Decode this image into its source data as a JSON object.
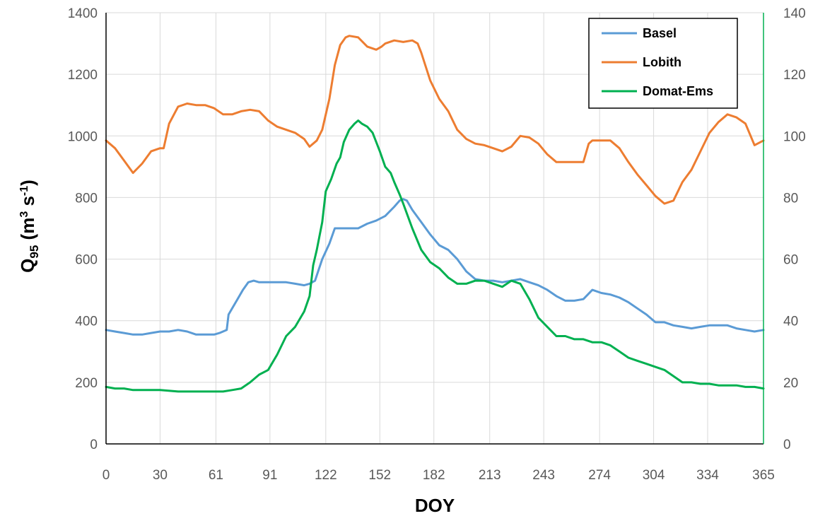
{
  "chart_data": {
    "type": "line",
    "xlabel": "DOY",
    "ylabel": {
      "main": "Q",
      "sub": "95",
      "unit_open": " (m",
      "unit_exp1": "3",
      "unit_mid": " s",
      "unit_exp2": "-1",
      "unit_close": ")"
    },
    "x_ticks": [
      0,
      30,
      61,
      91,
      122,
      152,
      182,
      213,
      243,
      274,
      304,
      334,
      365
    ],
    "xlim": [
      0,
      365
    ],
    "ylim_left": [
      0,
      1400
    ],
    "y_ticks_left": [
      0,
      200,
      400,
      600,
      800,
      1000,
      1200,
      1400
    ],
    "ylim_right": [
      0,
      140
    ],
    "y_ticks_right": [
      0,
      20,
      40,
      60,
      80,
      100,
      120,
      140
    ],
    "grid": true,
    "legend_position": "top-right",
    "colors": {
      "right_axis": "#00b050",
      "grid": "#d9d9d9",
      "axis": "#000000"
    },
    "series": [
      {
        "name": "Basel",
        "color": "#5b9bd5",
        "axis": "left",
        "x": [
          0,
          5,
          10,
          15,
          20,
          25,
          30,
          35,
          40,
          45,
          50,
          55,
          60,
          63,
          67,
          68,
          70,
          73,
          76,
          79,
          82,
          85,
          90,
          95,
          100,
          105,
          110,
          113,
          116,
          120,
          124,
          127,
          130,
          135,
          140,
          145,
          150,
          155,
          160,
          163,
          165,
          167,
          170,
          175,
          180,
          185,
          190,
          195,
          200,
          205,
          210,
          215,
          220,
          225,
          230,
          235,
          240,
          245,
          250,
          255,
          260,
          265,
          270,
          275,
          280,
          285,
          290,
          295,
          300,
          305,
          310,
          315,
          320,
          325,
          330,
          335,
          340,
          345,
          350,
          355,
          360,
          365
        ],
        "y": [
          370,
          365,
          360,
          355,
          355,
          360,
          365,
          365,
          370,
          365,
          355,
          355,
          355,
          360,
          370,
          420,
          440,
          470,
          500,
          525,
          530,
          525,
          525,
          525,
          525,
          520,
          515,
          520,
          530,
          600,
          650,
          700,
          700,
          700,
          700,
          715,
          725,
          740,
          770,
          790,
          795,
          790,
          760,
          720,
          680,
          645,
          630,
          600,
          560,
          535,
          530,
          530,
          525,
          530,
          535,
          525,
          515,
          500,
          480,
          465,
          465,
          470,
          500,
          490,
          485,
          475,
          460,
          440,
          420,
          395,
          395,
          385,
          380,
          375,
          380,
          385,
          385,
          385,
          375,
          370,
          365,
          370
        ]
      },
      {
        "name": "Lobith",
        "color": "#ed7d31",
        "axis": "left",
        "x": [
          0,
          5,
          10,
          15,
          20,
          25,
          30,
          32,
          35,
          40,
          45,
          50,
          55,
          60,
          65,
          70,
          75,
          80,
          85,
          90,
          95,
          100,
          105,
          110,
          113,
          117,
          120,
          124,
          127,
          130,
          133,
          135,
          140,
          145,
          150,
          153,
          155,
          160,
          165,
          170,
          173,
          175,
          180,
          185,
          190,
          195,
          200,
          205,
          210,
          215,
          220,
          225,
          230,
          235,
          240,
          245,
          250,
          255,
          260,
          265,
          268,
          270,
          275,
          280,
          285,
          290,
          295,
          300,
          305,
          310,
          315,
          320,
          325,
          330,
          335,
          340,
          345,
          350,
          355,
          360,
          365
        ],
        "y": [
          985,
          960,
          920,
          880,
          910,
          950,
          960,
          960,
          1040,
          1095,
          1105,
          1100,
          1100,
          1090,
          1070,
          1070,
          1080,
          1085,
          1080,
          1050,
          1030,
          1020,
          1010,
          990,
          965,
          985,
          1020,
          1120,
          1230,
          1295,
          1320,
          1325,
          1320,
          1290,
          1280,
          1290,
          1300,
          1310,
          1305,
          1310,
          1300,
          1270,
          1180,
          1120,
          1080,
          1020,
          990,
          975,
          970,
          960,
          950,
          965,
          1000,
          995,
          975,
          940,
          915,
          915,
          915,
          915,
          975,
          985,
          985,
          985,
          960,
          915,
          875,
          840,
          805,
          780,
          790,
          850,
          890,
          950,
          1010,
          1045,
          1070,
          1060,
          1040,
          970,
          985
        ]
      },
      {
        "name": "Domat-Ems",
        "color": "#00b050",
        "axis": "right",
        "x": [
          0,
          5,
          10,
          15,
          20,
          30,
          40,
          50,
          60,
          65,
          70,
          75,
          80,
          85,
          90,
          95,
          100,
          105,
          110,
          113,
          115,
          117,
          120,
          122,
          125,
          128,
          130,
          132,
          135,
          138,
          140,
          142,
          145,
          148,
          150,
          152,
          155,
          158,
          160,
          163,
          165,
          170,
          175,
          180,
          185,
          190,
          195,
          200,
          205,
          210,
          215,
          220,
          225,
          230,
          235,
          240,
          245,
          250,
          255,
          260,
          265,
          270,
          275,
          280,
          285,
          290,
          295,
          300,
          305,
          310,
          315,
          320,
          325,
          330,
          335,
          340,
          345,
          350,
          355,
          360,
          365
        ],
        "y": [
          18.5,
          18,
          18,
          17.5,
          17.5,
          17.5,
          17,
          17,
          17,
          17,
          17.5,
          18,
          20,
          22.5,
          24,
          29,
          35,
          38,
          43,
          48,
          58,
          63,
          72,
          82,
          86,
          91,
          93,
          98,
          102,
          104,
          105,
          104,
          103,
          101,
          98,
          95,
          90,
          88,
          85,
          81,
          78,
          70,
          63,
          59,
          57,
          54,
          52,
          52,
          53,
          53,
          52,
          51,
          53,
          52,
          47,
          41,
          38,
          35,
          35,
          34,
          34,
          33,
          33,
          32,
          30,
          28,
          27,
          26,
          25,
          24,
          22,
          20,
          20,
          19.5,
          19.5,
          19,
          19,
          19,
          18.5,
          18.5,
          18
        ]
      }
    ]
  }
}
